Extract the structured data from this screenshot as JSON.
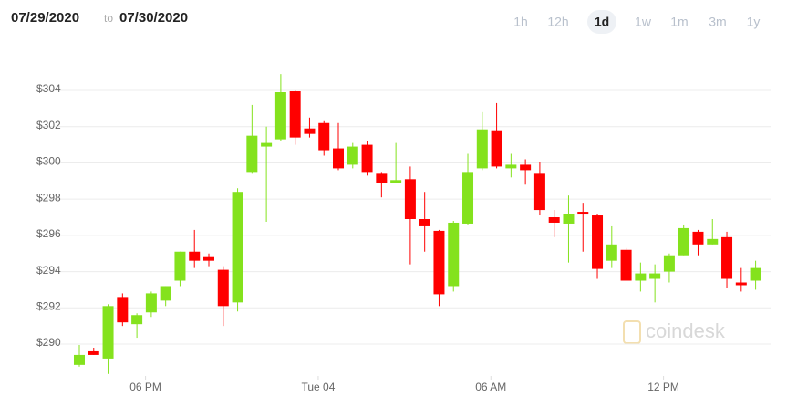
{
  "header": {
    "date_from": "07/29/2020",
    "separator": "to",
    "date_to": "07/30/2020",
    "ranges": [
      "1h",
      "12h",
      "1d",
      "1w",
      "1m",
      "3m",
      "1y"
    ],
    "active_range": 2
  },
  "watermark": "coindesk",
  "chart_data": {
    "type": "candlestick",
    "x": [
      0,
      1,
      2,
      3,
      4,
      5,
      6,
      7,
      8,
      9,
      10,
      11,
      12,
      13,
      14,
      15,
      16,
      17,
      18,
      19,
      20,
      21,
      22,
      23,
      24,
      25,
      26,
      27,
      28,
      29,
      30,
      31,
      32,
      33,
      34,
      35,
      36,
      37,
      38,
      39,
      40,
      41,
      42,
      43,
      44,
      45,
      46,
      47
    ],
    "open": [
      288.85,
      289.6,
      289.2,
      292.6,
      291.1,
      291.75,
      292.4,
      293.5,
      295.1,
      294.8,
      294.1,
      292.3,
      299.5,
      300.9,
      301.3,
      303.95,
      301.9,
      302.2,
      300.8,
      299.9,
      301.0,
      299.4,
      298.9,
      299.1,
      296.9,
      296.25,
      293.2,
      296.65,
      299.7,
      301.8,
      299.7,
      299.9,
      299.4,
      297.0,
      296.65,
      297.3,
      297.1,
      294.6,
      295.2,
      293.5,
      293.6,
      294.0,
      294.9,
      296.2,
      295.5,
      295.9,
      293.4,
      293.5
    ],
    "high": [
      289.95,
      289.8,
      292.2,
      292.8,
      291.7,
      292.9,
      293.2,
      295.1,
      296.3,
      295.0,
      294.3,
      298.6,
      303.2,
      302.0,
      304.9,
      304.0,
      302.5,
      302.3,
      302.2,
      301.1,
      301.2,
      299.5,
      301.1,
      299.8,
      298.4,
      296.3,
      296.8,
      300.5,
      302.8,
      303.3,
      300.5,
      300.2,
      300.05,
      297.4,
      298.2,
      297.8,
      297.2,
      296.5,
      295.3,
      294.5,
      294.4,
      295.0,
      296.6,
      296.3,
      296.9,
      296.2,
      294.2,
      294.6
    ],
    "low": [
      288.75,
      289.4,
      288.35,
      291.0,
      290.35,
      291.5,
      292.1,
      293.2,
      294.2,
      294.3,
      291.0,
      291.8,
      299.4,
      296.75,
      301.2,
      301.0,
      301.4,
      300.4,
      299.6,
      299.7,
      299.3,
      298.1,
      298.9,
      294.4,
      295.1,
      292.1,
      292.9,
      296.6,
      299.6,
      299.7,
      299.2,
      298.8,
      297.1,
      295.9,
      294.5,
      295.1,
      293.6,
      294.2,
      293.5,
      292.9,
      292.3,
      293.4,
      294.9,
      294.9,
      295.5,
      293.1,
      292.9,
      293.0
    ],
    "close": [
      289.4,
      289.4,
      292.1,
      291.2,
      291.6,
      292.8,
      293.2,
      295.1,
      294.6,
      294.6,
      292.1,
      298.4,
      301.5,
      301.1,
      303.9,
      301.4,
      301.6,
      300.7,
      299.7,
      300.9,
      299.5,
      298.9,
      299.05,
      296.9,
      296.5,
      292.75,
      296.7,
      299.5,
      301.85,
      299.8,
      299.9,
      299.6,
      297.4,
      296.7,
      297.2,
      297.15,
      294.15,
      295.5,
      293.5,
      293.9,
      293.9,
      294.9,
      296.4,
      295.5,
      295.8,
      293.6,
      293.25,
      294.2
    ],
    "up_color": "#84e21d",
    "down_color": "#ff0000",
    "xlim": [
      -0.76,
      48.04
    ],
    "xticks": [
      {
        "value": 4.6,
        "label": "06 PM"
      },
      {
        "value": 16.6,
        "label": "Tue 04"
      },
      {
        "value": 28.6,
        "label": "06 AM"
      },
      {
        "value": 40.6,
        "label": "12 PM"
      }
    ],
    "ylim": [
      288.5,
      306
    ],
    "yticks": [
      {
        "value": 290,
        "label": "$290"
      },
      {
        "value": 292,
        "label": "$292"
      },
      {
        "value": 294,
        "label": "$294"
      },
      {
        "value": 296,
        "label": "$296"
      },
      {
        "value": 298,
        "label": "$298"
      },
      {
        "value": 300,
        "label": "$300"
      },
      {
        "value": 302,
        "label": "$302"
      },
      {
        "value": 304,
        "label": "$304"
      }
    ],
    "grid": true
  }
}
